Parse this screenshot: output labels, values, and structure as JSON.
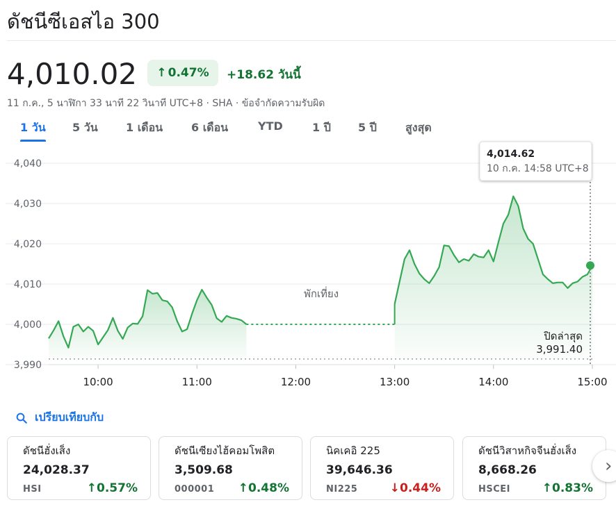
{
  "header": {
    "title": "ดัชนีซีเอสไอ 300",
    "price": "4,010.02",
    "change_pct": "0.47%",
    "change_abs": "+18.62",
    "change_label": "วันนี้",
    "timestamp": "11 ก.ค., 5 นาฬิกา 33 นาที 22 วินาที UTC+8 · SHA · ",
    "disclaimer": "ข้อจำกัดความรับผิด"
  },
  "tabs": [
    "1 วัน",
    "5 วัน",
    "1 เดือน",
    "6 เดือน",
    "YTD",
    "1 ปี",
    "5 ปี",
    "สูงสุด"
  ],
  "active_tab": 0,
  "colors": {
    "up": "#137333",
    "down": "#c5221f",
    "accent": "#1a73e8",
    "line": "#34a853"
  },
  "chart_data": {
    "type": "line",
    "x_ticks": [
      "10:00",
      "11:00",
      "12:00",
      "13:00",
      "14:00",
      "15:00"
    ],
    "y_ticks": [
      "4,040",
      "4,030",
      "4,020",
      "4,010",
      "4,000",
      "3,990"
    ],
    "ylim": [
      3990,
      4040
    ],
    "grid": true,
    "break_label": "พักเที่ยง",
    "previous_close_label": "ปิดล่าสุด",
    "previous_close_value": "3,991.40",
    "previous_close": 3991.4,
    "tooltip": {
      "value": "4,014.62",
      "time": "10 ก.ค. 14:58 UTC+8"
    },
    "morning": {
      "x": [
        "09:30",
        "09:33",
        "09:36",
        "09:39",
        "09:42",
        "09:45",
        "09:48",
        "09:51",
        "09:54",
        "09:57",
        "10:00",
        "10:03",
        "10:06",
        "10:09",
        "10:12",
        "10:15",
        "10:18",
        "10:21",
        "10:24",
        "10:27",
        "10:30",
        "10:33",
        "10:36",
        "10:39",
        "10:42",
        "10:45",
        "10:48",
        "10:51",
        "10:54",
        "10:57",
        "11:00",
        "11:03",
        "11:06",
        "11:09",
        "11:12",
        "11:15",
        "11:18",
        "11:21",
        "11:24",
        "11:27",
        "11:30"
      ],
      "y": [
        3996.5,
        3998.5,
        4000.8,
        3997.0,
        3994.2,
        3999.4,
        4000.0,
        3998.2,
        3999.4,
        3998.4,
        3995.0,
        3996.8,
        3998.6,
        4001.6,
        3998.4,
        3996.4,
        3999.2,
        4000.2,
        4000.1,
        4002.0,
        4008.5,
        4007.6,
        4007.8,
        4006.0,
        4005.7,
        4004.2,
        4000.8,
        3998.2,
        3998.8,
        4002.6,
        4006.0,
        4008.6,
        4006.6,
        4004.8,
        4001.5,
        4000.6,
        4002.1,
        4001.6,
        4001.4,
        4001.0,
        4000.0
      ]
    },
    "afternoon": {
      "x": [
        "13:00",
        "13:03",
        "13:06",
        "13:09",
        "13:12",
        "13:15",
        "13:18",
        "13:21",
        "13:24",
        "13:27",
        "13:30",
        "13:33",
        "13:36",
        "13:39",
        "13:42",
        "13:45",
        "13:48",
        "13:51",
        "13:54",
        "13:57",
        "14:00",
        "14:03",
        "14:06",
        "14:09",
        "14:12",
        "14:15",
        "14:18",
        "14:21",
        "14:24",
        "14:27",
        "14:30",
        "14:33",
        "14:36",
        "14:39",
        "14:42",
        "14:45",
        "14:48",
        "14:51",
        "14:54",
        "14:57",
        "15:00"
      ],
      "y": [
        4005.0,
        4010.6,
        4016.2,
        4018.4,
        4015.0,
        4012.6,
        4011.2,
        4010.2,
        4012.0,
        4014.2,
        4019.6,
        4019.4,
        4017.2,
        4015.4,
        4016.2,
        4015.8,
        4017.4,
        4016.8,
        4016.6,
        4018.4,
        4015.6,
        4020.4,
        4025.0,
        4027.2,
        4031.8,
        4029.4,
        4023.8,
        4021.2,
        4020.0,
        4016.2,
        4012.4,
        4011.2,
        4010.2,
        4010.4,
        4010.4,
        4009.0,
        4010.2,
        4010.6,
        4011.8,
        4012.4,
        4014.62
      ]
    }
  },
  "compare": {
    "label": "เปรียบเทียบกับ"
  },
  "cards": [
    {
      "name": "ดัชนีฮั่งเส็ง",
      "value": "24,028.37",
      "symbol": "HSI",
      "pct": "0.57%",
      "direction": "up"
    },
    {
      "name": "ดัชนีเซียงไฮ้คอมโพสิต",
      "value": "3,509.68",
      "symbol": "000001",
      "pct": "0.48%",
      "direction": "up"
    },
    {
      "name": "นิคเคอิ 225",
      "value": "39,646.36",
      "symbol": "NI225",
      "pct": "0.44%",
      "direction": "down"
    },
    {
      "name": "ดัชนีวิสาหกิจจีนฮั่งเส็ง",
      "value": "8,668.26",
      "symbol": "HSCEI",
      "pct": "0.83%",
      "direction": "up"
    }
  ]
}
